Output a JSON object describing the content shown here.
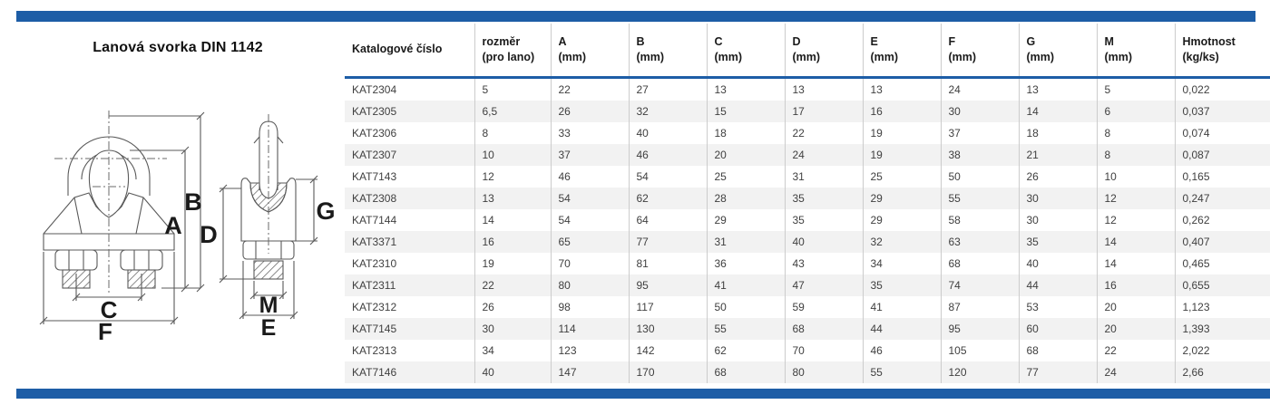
{
  "page": {
    "title": "Lanová svorka DIN 1142"
  },
  "colors": {
    "accent_blue": "#1d5da6",
    "row_stripe": "#f2f2f2",
    "grid_line": "#cccccc",
    "body_text": "#3f3f3f"
  },
  "diagram": {
    "description": "wire-rope-clip-front-and-side-technical-drawing",
    "labels": {
      "A": "A",
      "B": "B",
      "C": "C",
      "D": "D",
      "E": "E",
      "F": "F",
      "G": "G",
      "M": "M"
    }
  },
  "table": {
    "columns": [
      {
        "label": "Katalogové číslo",
        "unit": ""
      },
      {
        "label": "rozměr",
        "unit": "(pro lano)"
      },
      {
        "label": "A",
        "unit": "(mm)"
      },
      {
        "label": "B",
        "unit": "(mm)"
      },
      {
        "label": "C",
        "unit": "(mm)"
      },
      {
        "label": "D",
        "unit": "(mm)"
      },
      {
        "label": "E",
        "unit": "(mm)"
      },
      {
        "label": "F",
        "unit": "(mm)"
      },
      {
        "label": "G",
        "unit": "(mm)"
      },
      {
        "label": "M",
        "unit": "(mm)"
      },
      {
        "label": "Hmotnost",
        "unit": "(kg/ks)"
      }
    ],
    "rows": [
      [
        "KAT2304",
        "5",
        "22",
        "27",
        "13",
        "13",
        "13",
        "24",
        "13",
        "5",
        "0,022"
      ],
      [
        "KAT2305",
        "6,5",
        "26",
        "32",
        "15",
        "17",
        "16",
        "30",
        "14",
        "6",
        "0,037"
      ],
      [
        "KAT2306",
        "8",
        "33",
        "40",
        "18",
        "22",
        "19",
        "37",
        "18",
        "8",
        "0,074"
      ],
      [
        "KAT2307",
        "10",
        "37",
        "46",
        "20",
        "24",
        "19",
        "38",
        "21",
        "8",
        "0,087"
      ],
      [
        "KAT7143",
        "12",
        "46",
        "54",
        "25",
        "31",
        "25",
        "50",
        "26",
        "10",
        "0,165"
      ],
      [
        "KAT2308",
        "13",
        "54",
        "62",
        "28",
        "35",
        "29",
        "55",
        "30",
        "12",
        "0,247"
      ],
      [
        "KAT7144",
        "14",
        "54",
        "64",
        "29",
        "35",
        "29",
        "58",
        "30",
        "12",
        "0,262"
      ],
      [
        "KAT3371",
        "16",
        "65",
        "77",
        "31",
        "40",
        "32",
        "63",
        "35",
        "14",
        "0,407"
      ],
      [
        "KAT2310",
        "19",
        "70",
        "81",
        "36",
        "43",
        "34",
        "68",
        "40",
        "14",
        "0,465"
      ],
      [
        "KAT2311",
        "22",
        "80",
        "95",
        "41",
        "47",
        "35",
        "74",
        "44",
        "16",
        "0,655"
      ],
      [
        "KAT2312",
        "26",
        "98",
        "117",
        "50",
        "59",
        "41",
        "87",
        "53",
        "20",
        "1,123"
      ],
      [
        "KAT7145",
        "30",
        "114",
        "130",
        "55",
        "68",
        "44",
        "95",
        "60",
        "20",
        "1,393"
      ],
      [
        "KAT2313",
        "34",
        "123",
        "142",
        "62",
        "70",
        "46",
        "105",
        "68",
        "22",
        "2,022"
      ],
      [
        "KAT7146",
        "40",
        "147",
        "170",
        "68",
        "80",
        "55",
        "120",
        "77",
        "24",
        "2,66"
      ]
    ]
  }
}
